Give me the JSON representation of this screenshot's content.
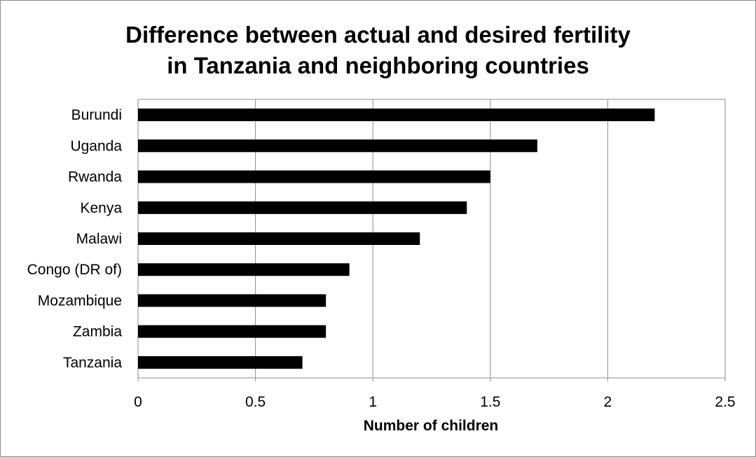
{
  "chart_data": {
    "type": "bar",
    "orientation": "horizontal",
    "title_line1": "Difference between actual and desired fertility",
    "title_line2": "in Tanzania and neighboring countries",
    "categories": [
      "Burundi",
      "Uganda",
      "Rwanda",
      "Kenya",
      "Malawi",
      "Congo (DR of)",
      "Mozambique",
      "Zambia",
      "Tanzania"
    ],
    "values": [
      2.2,
      1.7,
      1.5,
      1.4,
      1.2,
      0.9,
      0.8,
      0.8,
      0.7
    ],
    "xlabel": "Number of children",
    "ylabel": "",
    "xlim": [
      0,
      2.5
    ],
    "ticks": [
      "0",
      "0.5",
      "1",
      "1.5",
      "2",
      "2.5"
    ],
    "grid": true,
    "legend": "none",
    "bar_color": "#000000"
  }
}
